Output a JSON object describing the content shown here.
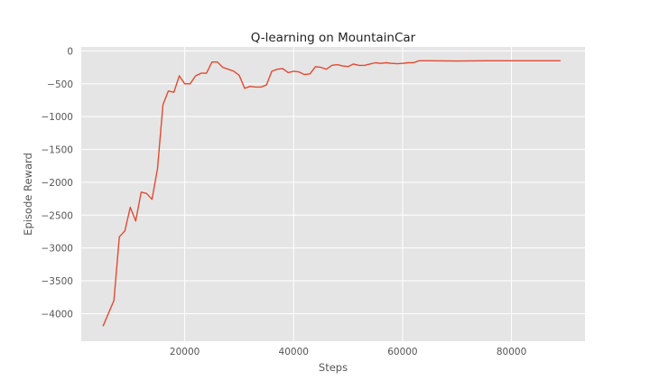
{
  "chart_data": {
    "type": "line",
    "title": "Q-learning on MountainCar",
    "xlabel": "Steps",
    "ylabel": "Episode Reward",
    "xlim": [
      1000,
      93500
    ],
    "ylim": [
      -4420,
      60
    ],
    "xticks": [
      20000,
      40000,
      60000,
      80000
    ],
    "xtick_labels": [
      "20000",
      "40000",
      "60000",
      "80000"
    ],
    "yticks": [
      0,
      -500,
      -1000,
      -1500,
      -2000,
      -2500,
      -3000,
      -3500,
      -4000
    ],
    "ytick_labels": [
      "0",
      "−500",
      "−1000",
      "−1500",
      "−2000",
      "−2500",
      "−3000",
      "−3500",
      "−4000"
    ],
    "grid": true,
    "legend": "none",
    "colors": {
      "plot_background": "#e5e5e5",
      "series": "#e24a33",
      "grid": "#ffffff"
    },
    "series": [
      {
        "color": "#e24a33",
        "x": [
          5000,
          7000,
          8000,
          9000,
          10000,
          11000,
          12000,
          13000,
          14000,
          15000,
          16000,
          17000,
          18000,
          19000,
          20000,
          21000,
          22000,
          23000,
          24000,
          25000,
          26000,
          27000,
          28000,
          29000,
          30000,
          31000,
          32000,
          33000,
          34000,
          35000,
          36000,
          37000,
          38000,
          39000,
          40000,
          41000,
          42000,
          43000,
          44000,
          45000,
          46000,
          47000,
          48000,
          49000,
          50000,
          51000,
          52000,
          53000,
          54000,
          55000,
          56000,
          57000,
          58000,
          59000,
          60000,
          61000,
          62000,
          63000,
          65000,
          70000,
          75000,
          80000,
          85000,
          89000
        ],
        "y": [
          -4190,
          -3800,
          -2830,
          -2740,
          -2380,
          -2590,
          -2150,
          -2170,
          -2260,
          -1790,
          -820,
          -610,
          -630,
          -380,
          -500,
          -500,
          -380,
          -340,
          -340,
          -170,
          -170,
          -250,
          -280,
          -310,
          -370,
          -570,
          -540,
          -550,
          -550,
          -520,
          -310,
          -280,
          -270,
          -330,
          -310,
          -320,
          -360,
          -350,
          -240,
          -250,
          -280,
          -220,
          -210,
          -230,
          -240,
          -200,
          -220,
          -220,
          -200,
          -180,
          -190,
          -180,
          -190,
          -195,
          -190,
          -180,
          -180,
          -150,
          -150,
          -155,
          -150,
          -150,
          -150,
          -150
        ]
      }
    ]
  }
}
